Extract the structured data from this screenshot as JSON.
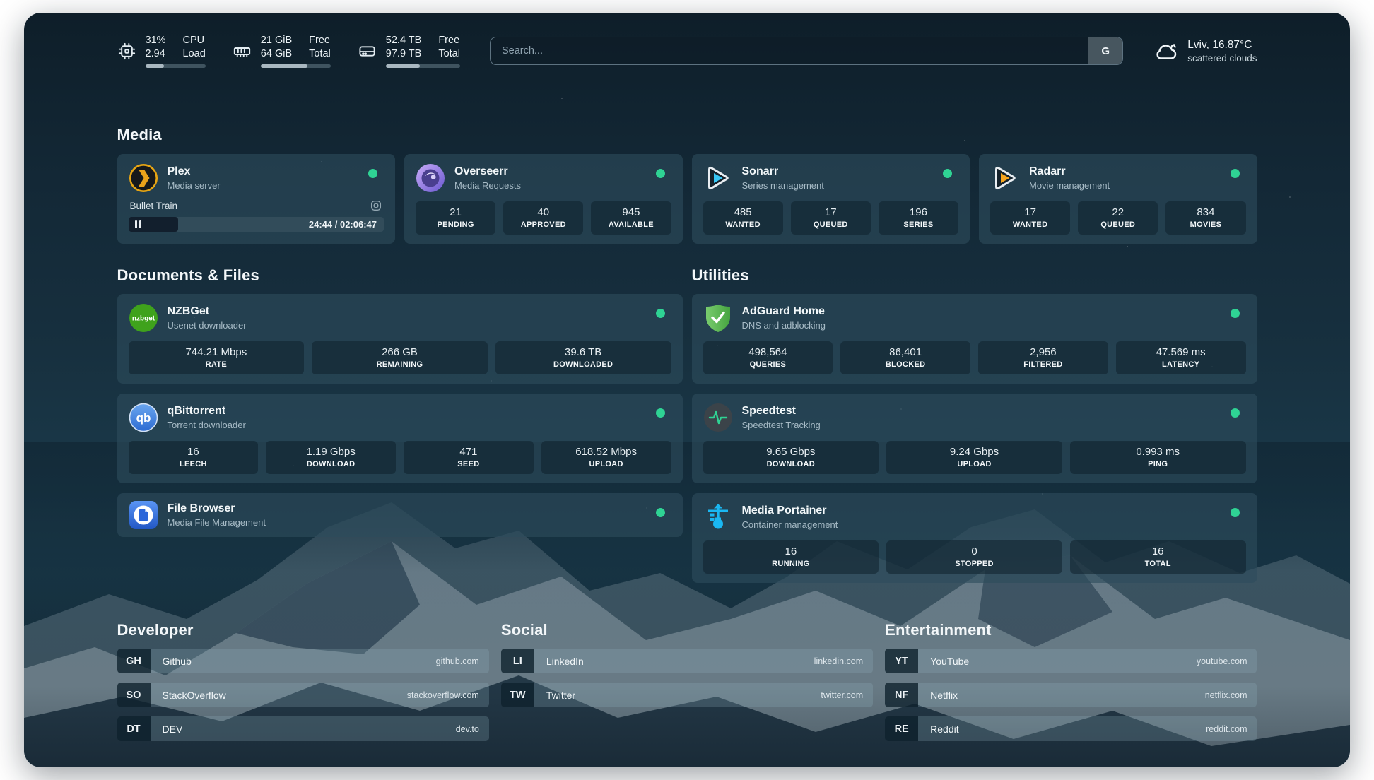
{
  "topbar": {
    "stats": [
      {
        "name": "cpu",
        "values": [
          "31%",
          "2.94"
        ],
        "labels": [
          "CPU",
          "Load"
        ],
        "percent": 31
      },
      {
        "name": "memory",
        "values": [
          "21 GiB",
          "64 GiB"
        ],
        "labels": [
          "Free",
          "Total"
        ],
        "percent": 67
      },
      {
        "name": "disk",
        "values": [
          "52.4 TB",
          "97.9 TB"
        ],
        "labels": [
          "Free",
          "Total"
        ],
        "percent": 46
      }
    ],
    "search": {
      "placeholder": "Search...",
      "button_label": "G"
    },
    "weather": {
      "headline": "Lviv, 16.87°C",
      "condition": "scattered clouds"
    }
  },
  "sections": {
    "media": {
      "title": "Media",
      "apps": [
        {
          "name": "Plex",
          "subtitle": "Media server",
          "status": "online",
          "now_playing": {
            "title": "Bullet Train",
            "time_display": "24:44 / 02:06:47",
            "progress_percent": 19.6
          }
        },
        {
          "name": "Overseerr",
          "subtitle": "Media Requests",
          "status": "online",
          "stats": [
            {
              "value": "21",
              "label": "PENDING"
            },
            {
              "value": "40",
              "label": "APPROVED"
            },
            {
              "value": "945",
              "label": "AVAILABLE"
            }
          ]
        },
        {
          "name": "Sonarr",
          "subtitle": "Series management",
          "status": "online",
          "stats": [
            {
              "value": "485",
              "label": "WANTED"
            },
            {
              "value": "17",
              "label": "QUEUED"
            },
            {
              "value": "196",
              "label": "SERIES"
            }
          ]
        },
        {
          "name": "Radarr",
          "subtitle": "Movie management",
          "status": "online",
          "stats": [
            {
              "value": "17",
              "label": "WANTED"
            },
            {
              "value": "22",
              "label": "QUEUED"
            },
            {
              "value": "834",
              "label": "MOVIES"
            }
          ]
        }
      ]
    },
    "documents": {
      "title": "Documents & Files",
      "apps": [
        {
          "name": "NZBGet",
          "subtitle": "Usenet downloader",
          "status": "online",
          "stats": [
            {
              "value": "744.21 Mbps",
              "label": "RATE"
            },
            {
              "value": "266 GB",
              "label": "REMAINING"
            },
            {
              "value": "39.6 TB",
              "label": "DOWNLOADED"
            }
          ]
        },
        {
          "name": "qBittorrent",
          "subtitle": "Torrent downloader",
          "status": "online",
          "stats": [
            {
              "value": "16",
              "label": "LEECH"
            },
            {
              "value": "1.19 Gbps",
              "label": "DOWNLOAD"
            },
            {
              "value": "471",
              "label": "SEED"
            },
            {
              "value": "618.52 Mbps",
              "label": "UPLOAD"
            }
          ]
        },
        {
          "name": "File Browser",
          "subtitle": "Media File Management",
          "status": "online"
        }
      ]
    },
    "utilities": {
      "title": "Utilities",
      "apps": [
        {
          "name": "AdGuard Home",
          "subtitle": "DNS and adblocking",
          "status": "online",
          "stats": [
            {
              "value": "498,564",
              "label": "QUERIES"
            },
            {
              "value": "86,401",
              "label": "BLOCKED"
            },
            {
              "value": "2,956",
              "label": "FILTERED"
            },
            {
              "value": "47.569 ms",
              "label": "LATENCY"
            }
          ]
        },
        {
          "name": "Speedtest",
          "subtitle": "Speedtest Tracking",
          "status": "online",
          "stats": [
            {
              "value": "9.65 Gbps",
              "label": "DOWNLOAD"
            },
            {
              "value": "9.24 Gbps",
              "label": "UPLOAD"
            },
            {
              "value": "0.993 ms",
              "label": "PING"
            }
          ]
        },
        {
          "name": "Media Portainer",
          "subtitle": "Container management",
          "status": "online",
          "stats": [
            {
              "value": "16",
              "label": "RUNNING"
            },
            {
              "value": "0",
              "label": "STOPPED"
            },
            {
              "value": "16",
              "label": "TOTAL"
            }
          ]
        }
      ]
    },
    "links": [
      {
        "title": "Developer",
        "bookmarks": [
          {
            "abbr": "GH",
            "name": "Github",
            "url": "github.com"
          },
          {
            "abbr": "SO",
            "name": "StackOverflow",
            "url": "stackoverflow.com"
          },
          {
            "abbr": "DT",
            "name": "DEV",
            "url": "dev.to"
          }
        ]
      },
      {
        "title": "Social",
        "bookmarks": [
          {
            "abbr": "LI",
            "name": "LinkedIn",
            "url": "linkedin.com"
          },
          {
            "abbr": "TW",
            "name": "Twitter",
            "url": "twitter.com"
          }
        ]
      },
      {
        "title": "Entertainment",
        "bookmarks": [
          {
            "abbr": "YT",
            "name": "YouTube",
            "url": "youtube.com"
          },
          {
            "abbr": "NF",
            "name": "Netflix",
            "url": "netflix.com"
          },
          {
            "abbr": "RE",
            "name": "Reddit",
            "url": "reddit.com"
          }
        ]
      }
    ]
  },
  "colors": {
    "status_online": "#2fd394",
    "plex_accent": "#eba21a",
    "sonarr_accent": "#38c6f4",
    "radarr_accent": "#f6a51e",
    "adguard_accent": "#5cb853",
    "portainer_accent": "#1ab8f3"
  }
}
